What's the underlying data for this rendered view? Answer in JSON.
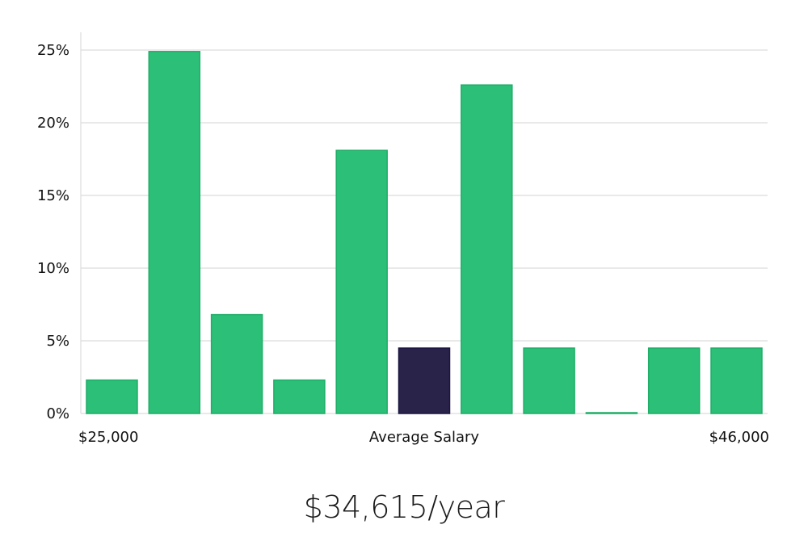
{
  "chart_data": {
    "type": "bar",
    "title": "",
    "xlabel": "Average Salary",
    "ylabel": "",
    "ylim": [
      0,
      26
    ],
    "yticks": [
      0,
      5,
      10,
      15,
      20,
      25
    ],
    "ytick_labels": [
      "0%",
      "5%",
      "10%",
      "15%",
      "20%",
      "25%"
    ],
    "x_start_label": "$25,000",
    "x_end_label": "$46,000",
    "values": [
      2.3,
      24.9,
      6.8,
      2.3,
      18.1,
      4.5,
      22.6,
      4.5,
      0.0,
      4.5,
      4.5
    ],
    "highlight_index": 5,
    "colors": {
      "bar": "#2bbf77",
      "bar_stroke": "#1fae68",
      "highlight": "#29234a",
      "grid": "#dcdcdc"
    }
  },
  "salary_label": "$34,615/year"
}
